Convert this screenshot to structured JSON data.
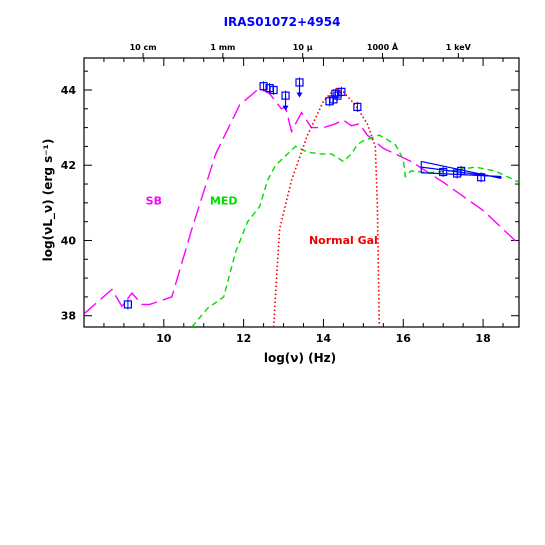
{
  "chart_data": {
    "type": "line",
    "title": "IRAS01072+4954",
    "xlabel": "log(ν)  (Hz)",
    "ylabel": "log(νL_ν)  (erg s⁻¹)",
    "xlim": [
      8.0,
      18.9
    ],
    "ylim": [
      37.7,
      44.85
    ],
    "x_ticks": [
      10,
      12,
      14,
      16,
      18
    ],
    "x_tick_labels": [
      "10",
      "12",
      "14",
      "16",
      "18"
    ],
    "y_ticks": [
      38,
      40,
      42,
      44
    ],
    "y_tick_labels": [
      "38",
      "40",
      "42",
      "44"
    ],
    "top_axis_labels": [
      {
        "x": 9.48,
        "label": "10 cm"
      },
      {
        "x": 11.48,
        "label": "1 mm"
      },
      {
        "x": 13.48,
        "label": "10 μ"
      },
      {
        "x": 15.48,
        "label": "1000 Å"
      },
      {
        "x": 17.38,
        "label": "1 keV"
      }
    ],
    "colors": {
      "title": "#0000ff",
      "sb": "#ff00ff",
      "med": "#00dd00",
      "normal_gal": "#ee0000",
      "data": "#0000ff",
      "axes": "#000000"
    },
    "series": [
      {
        "name": "SB",
        "label_pos": [
          9.75,
          40.95
        ],
        "style": "long-dash",
        "color": "#ff00ff",
        "x": [
          8.0,
          8.7,
          8.95,
          9.2,
          9.45,
          9.65,
          10.2,
          10.7,
          11.3,
          11.9,
          12.4,
          12.65,
          12.8,
          12.95,
          13.05,
          13.2,
          13.3,
          13.45,
          13.7,
          14.0,
          14.3,
          14.5,
          14.7,
          14.9,
          15.1,
          15.5,
          16.2,
          17.0,
          18.0,
          18.9
        ],
        "values": [
          38.05,
          38.7,
          38.25,
          38.6,
          38.3,
          38.3,
          38.5,
          40.3,
          42.3,
          43.6,
          44.05,
          43.9,
          43.7,
          43.5,
          43.55,
          42.9,
          43.1,
          43.4,
          43.0,
          43.0,
          43.1,
          43.2,
          43.05,
          43.1,
          42.8,
          42.45,
          42.1,
          41.55,
          40.8,
          39.9
        ]
      },
      {
        "name": "MED",
        "label_pos": [
          11.5,
          40.95
        ],
        "style": "dash",
        "color": "#00dd00",
        "x": [
          10.7,
          11.1,
          11.5,
          11.8,
          12.1,
          12.4,
          12.6,
          12.8,
          13.0,
          13.3,
          13.6,
          13.9,
          14.2,
          14.5,
          14.7,
          14.85,
          15.0,
          15.4,
          15.8,
          16.0,
          16.05,
          16.2,
          16.6,
          17.2,
          17.8,
          18.3,
          18.9
        ],
        "values": [
          37.7,
          38.2,
          38.5,
          39.7,
          40.5,
          40.9,
          41.6,
          42.0,
          42.2,
          42.5,
          42.35,
          42.3,
          42.3,
          42.1,
          42.3,
          42.55,
          42.65,
          42.8,
          42.55,
          42.15,
          41.7,
          41.85,
          41.8,
          41.85,
          41.95,
          41.85,
          41.55
        ]
      },
      {
        "name": "Normal Gal",
        "label_pos": [
          14.5,
          39.9
        ],
        "style": "dotted",
        "color": "#ee0000",
        "x": [
          12.75,
          12.9,
          13.2,
          13.6,
          14.0,
          14.3,
          14.5,
          14.8,
          15.1,
          15.3,
          15.35,
          15.4
        ],
        "values": [
          37.7,
          40.3,
          41.6,
          42.8,
          43.7,
          44.05,
          43.95,
          43.6,
          43.1,
          42.5,
          41.0,
          37.7
        ]
      }
    ],
    "points": [
      {
        "x": 9.1,
        "y": 38.3
      },
      {
        "x": 12.5,
        "y": 44.1
      },
      {
        "x": 12.65,
        "y": 44.05
      },
      {
        "x": 12.75,
        "y": 44.0
      },
      {
        "x": 13.05,
        "y": 43.85,
        "upper_limit": true
      },
      {
        "x": 13.4,
        "y": 44.2,
        "upper_limit": true
      },
      {
        "x": 14.15,
        "y": 43.7
      },
      {
        "x": 14.25,
        "y": 43.75
      },
      {
        "x": 14.3,
        "y": 43.9
      },
      {
        "x": 14.35,
        "y": 43.85
      },
      {
        "x": 14.45,
        "y": 43.95
      },
      {
        "x": 14.85,
        "y": 43.55
      },
      {
        "x": 17.0,
        "y": 41.82
      },
      {
        "x": 17.35,
        "y": 41.78
      },
      {
        "x": 17.45,
        "y": 41.85
      },
      {
        "x": 17.95,
        "y": 41.68
      }
    ],
    "bowtie": {
      "x": [
        16.45,
        18.45
      ],
      "y_upper": [
        42.1,
        41.65
      ],
      "y_lower": [
        41.8,
        41.7
      ]
    }
  }
}
